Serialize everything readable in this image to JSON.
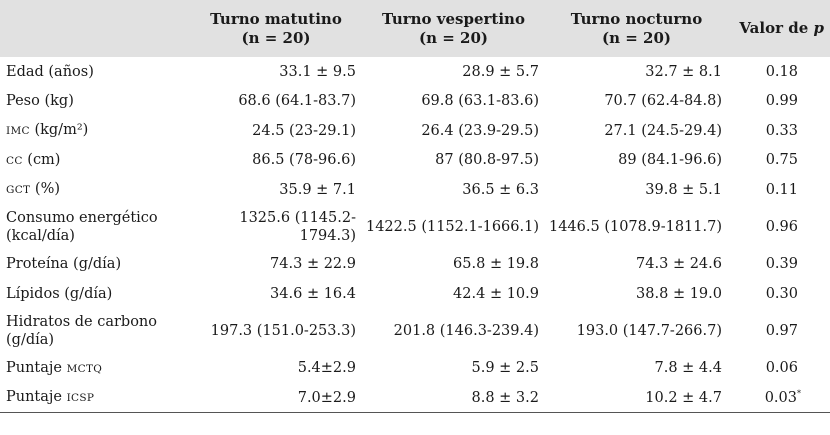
{
  "header": {
    "col_matutino": [
      "Turno matutino",
      "(n = 20)"
    ],
    "col_vespertino": [
      "Turno vespertino",
      "(n = 20)"
    ],
    "col_nocturno": [
      "Turno nocturno",
      "(n = 20)"
    ],
    "col_p_prefix": "Valor de",
    "col_p_symbol": "p"
  },
  "rows": [
    {
      "label_lines": [
        "Edad (años)"
      ],
      "matutino": "33.1 ± 9.5",
      "vespertino": "28.9 ± 5.7",
      "nocturno": "32.7 ± 8.1",
      "p": "0.18"
    },
    {
      "label_lines": [
        "Peso (kg)"
      ],
      "matutino": "68.6 (64.1-83.7)",
      "vespertino": "69.8 (63.1-83.6)",
      "nocturno": "70.7 (62.4-84.8)",
      "p": "0.99"
    },
    {
      "label_sc": "IMC",
      "label_rest": " (kg/m²)",
      "matutino": "24.5 (23-29.1)",
      "vespertino": "26.4 (23.9-29.5)",
      "nocturno": "27.1 (24.5-29.4)",
      "p": "0.33"
    },
    {
      "label_sc": "CC",
      "label_rest": " (cm)",
      "matutino": "86.5 (78-96.6)",
      "vespertino": "87 (80.8-97.5)",
      "nocturno": "89 (84.1-96.6)",
      "p": "0.75"
    },
    {
      "label_sc": "GCT",
      "label_rest": " (%)",
      "matutino": "35.9 ± 7.1",
      "vespertino": "36.5 ± 6.3",
      "nocturno": "39.8 ± 5.1",
      "p": "0.11"
    },
    {
      "label_lines": [
        "Consumo energético",
        "(kcal/día)"
      ],
      "matutino": "1325.6 (1145.2-1794.3)",
      "vespertino": "1422.5 (1152.1-1666.1)",
      "nocturno": "1446.5 (1078.9-1811.7)",
      "p": "0.96"
    },
    {
      "label_lines": [
        "Proteína (g/día)"
      ],
      "matutino": "74.3 ± 22.9",
      "vespertino": "65.8 ± 19.8",
      "nocturno": "74.3 ± 24.6",
      "p": "0.39"
    },
    {
      "label_lines": [
        "Lípidos (g/día)"
      ],
      "matutino": "34.6 ± 16.4",
      "vespertino": "42.4 ± 10.9",
      "nocturno": "38.8 ± 19.0",
      "p": "0.30"
    },
    {
      "label_lines": [
        "Hidratos de carbono",
        "(g/día)"
      ],
      "matutino": "197.3 (151.0-253.3)",
      "vespertino": "201.8 (146.3-239.4)",
      "nocturno": "193.0 (147.7-266.7)",
      "p": "0.97"
    },
    {
      "label_prefix": "Puntaje ",
      "label_sc": "MCTQ",
      "matutino": "5.4±2.9",
      "vespertino": "5.9 ± 2.5",
      "nocturno": "7.8 ± 4.4",
      "p": "0.06"
    },
    {
      "label_prefix": "Puntaje ",
      "label_sc": "ICSP",
      "matutino": "7.0±2.9",
      "vespertino": "8.8 ± 3.2",
      "nocturno": "10.2 ± 4.7",
      "p": "0.03",
      "p_mark": "*"
    }
  ]
}
